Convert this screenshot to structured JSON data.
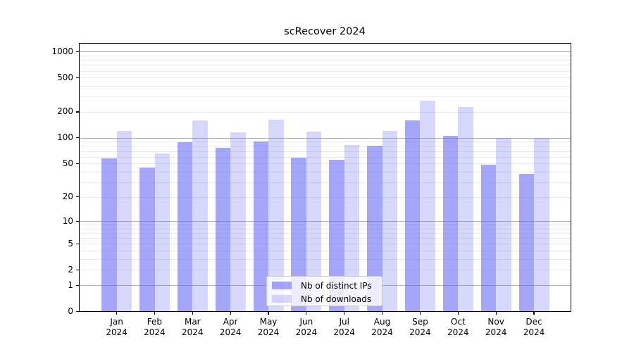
{
  "figure": {
    "title": "scRecover 2024"
  },
  "chart_data": {
    "type": "bar",
    "title": "scRecover 2024",
    "categories": [
      "Jan",
      "Feb",
      "Mar",
      "Apr",
      "May",
      "Jun",
      "Jul",
      "Aug",
      "Sep",
      "Oct",
      "Nov",
      "Dec"
    ],
    "category_year": "2024",
    "series": [
      {
        "name": "Nb of distinct IPs",
        "color": "#6e6ef5",
        "alpha": 0.62,
        "values": [
          57,
          45,
          88,
          76,
          91,
          59,
          55,
          80,
          158,
          106,
          48,
          38
        ]
      },
      {
        "name": "Nb of downloads",
        "color": "#6e6ef5",
        "alpha": 0.28,
        "values": [
          120,
          65,
          160,
          115,
          162,
          118,
          82,
          120,
          272,
          226,
          100,
          100
        ]
      }
    ],
    "yscale": "log1p",
    "yticks": [
      0,
      1,
      2,
      5,
      10,
      20,
      50,
      100,
      200,
      500,
      1000
    ],
    "ylim": [
      0,
      1280
    ],
    "xlabel": "",
    "ylabel": "",
    "grid": {
      "major_color": "#b0b0b0",
      "minor_color": "#e9e9e9",
      "major_values": [
        1,
        10,
        100,
        1000
      ]
    },
    "legend": {
      "position": "lower center",
      "entries": [
        "Nb of distinct IPs",
        "Nb of downloads"
      ]
    }
  }
}
